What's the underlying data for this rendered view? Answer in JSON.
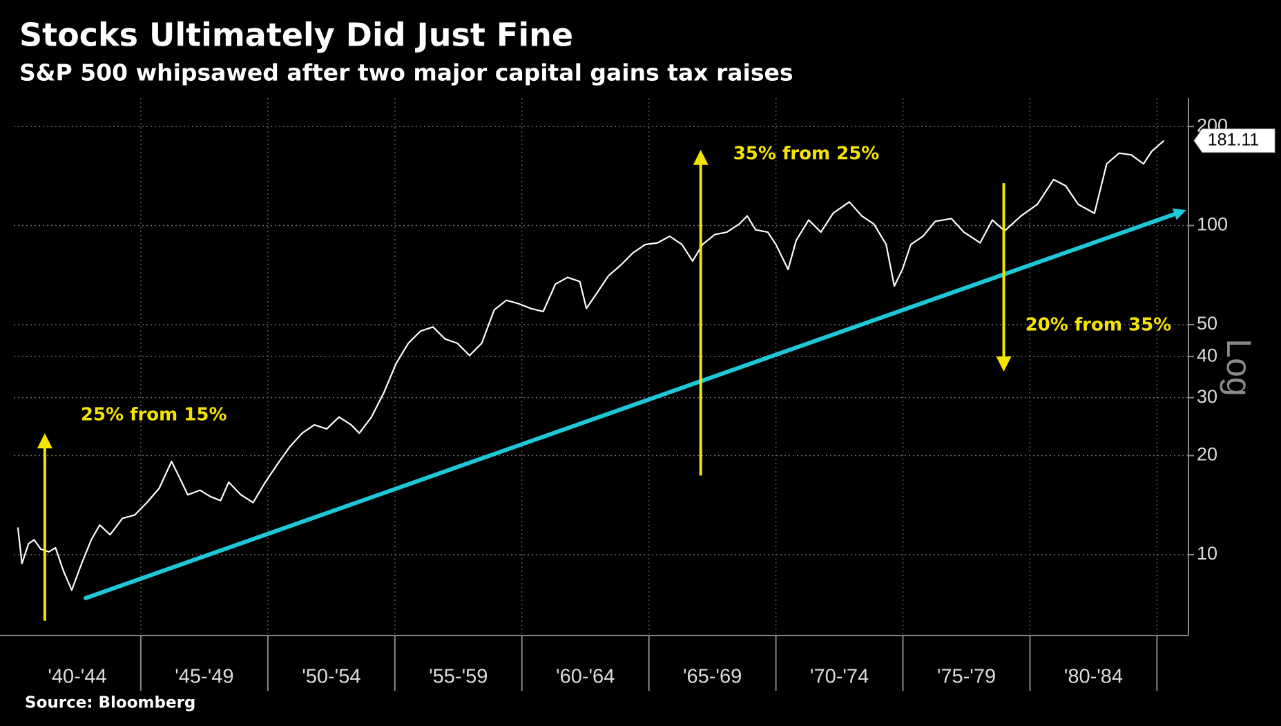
{
  "chart_data": {
    "type": "line",
    "title": "Stocks Ultimately Did Just Fine",
    "subtitle": "S&P 500 whipsawed after two major capital gains tax raises",
    "source": "Source: Bloomberg",
    "y_scale_label": "Log",
    "log_y": true,
    "grid": true,
    "categories": [
      "'40-'44",
      "'45-'49",
      "'50-'54",
      "'55-'59",
      "'60-'64",
      "'65-'69",
      "'70-'74",
      "'75-'79",
      "'80-'84"
    ],
    "xlim": [
      1940,
      1986.24
    ],
    "xticks": [
      1940,
      1945,
      1950,
      1955,
      1960,
      1965,
      1970,
      1975,
      1980,
      1985
    ],
    "ylim": [
      5.68,
      244
    ],
    "yticks": [
      10,
      20,
      30,
      40,
      50,
      100,
      200
    ],
    "x": [
      1940.16,
      1940.32,
      1940.58,
      1940.8,
      1941.06,
      1941.38,
      1941.64,
      1941.96,
      1942.28,
      1942.67,
      1943.05,
      1943.38,
      1943.79,
      1944.28,
      1944.76,
      1945.24,
      1945.72,
      1946.21,
      1946.53,
      1946.85,
      1947.33,
      1947.75,
      1948.14,
      1948.46,
      1948.94,
      1949.42,
      1949.9,
      1950.39,
      1950.87,
      1951.35,
      1951.83,
      1952.32,
      1952.8,
      1953.28,
      1953.6,
      1954.08,
      1954.57,
      1955.05,
      1955.53,
      1956.01,
      1956.5,
      1956.98,
      1957.46,
      1957.94,
      1958.42,
      1958.91,
      1959.39,
      1959.87,
      1960.35,
      1960.84,
      1961.32,
      1961.8,
      1962.28,
      1962.54,
      1962.93,
      1963.41,
      1963.89,
      1964.37,
      1964.86,
      1965.34,
      1965.82,
      1966.3,
      1966.72,
      1967.11,
      1967.59,
      1968.07,
      1968.55,
      1968.87,
      1969.2,
      1969.68,
      1970.0,
      1970.48,
      1970.8,
      1971.29,
      1971.77,
      1972.25,
      1972.89,
      1973.38,
      1973.86,
      1974.34,
      1974.66,
      1974.98,
      1975.31,
      1975.79,
      1976.27,
      1976.91,
      1977.4,
      1978.04,
      1978.52,
      1979.0,
      1979.65,
      1980.29,
      1980.93,
      1981.41,
      1981.9,
      1982.54,
      1983.02,
      1983.51,
      1983.99,
      1984.47,
      1984.79,
      1985.27
    ],
    "series": [
      {
        "name": "S&P 500",
        "color": "#ffffff",
        "values": [
          12.1,
          9.4,
          10.8,
          11.1,
          10.4,
          10.2,
          10.5,
          8.9,
          7.8,
          9.4,
          11.1,
          12.3,
          11.5,
          12.9,
          13.2,
          14.4,
          15.9,
          19.2,
          17.1,
          15.2,
          15.7,
          15.0,
          14.6,
          16.6,
          15.2,
          14.4,
          16.6,
          18.9,
          21.3,
          23.4,
          24.8,
          24.1,
          26.2,
          24.8,
          23.4,
          26.2,
          31.1,
          38.1,
          43.9,
          47.8,
          49.2,
          45.2,
          43.9,
          40.3,
          43.9,
          55.4,
          59.3,
          57.9,
          56.0,
          54.8,
          66.4,
          69.6,
          67.6,
          56.0,
          62.0,
          70.4,
          75.8,
          82.6,
          87.6,
          88.6,
          92.8,
          87.6,
          78.0,
          87.6,
          93.9,
          95.5,
          101,
          107,
          97.1,
          95.5,
          87.6,
          73.6,
          90.2,
          104,
          95.5,
          109,
          118,
          107,
          101,
          87.6,
          65.5,
          73.6,
          87.6,
          92.8,
          103,
          105,
          95.5,
          88.6,
          104,
          96.3,
          107,
          116,
          138,
          132,
          116,
          109,
          154,
          166,
          164,
          154,
          168,
          181.11
        ]
      }
    ],
    "trendline": {
      "color": "#1ec8d8",
      "x": [
        1942.83,
        1985.69
      ],
      "values": [
        7.38,
        108.3
      ]
    },
    "annotations": [
      {
        "text": "25% from 15%",
        "color": "#f5e400",
        "x": 1941.22,
        "y_from": 6.3,
        "y_to": 23.4
      },
      {
        "text": "35% from 25%",
        "color": "#f5e400",
        "x": 1967.04,
        "y_from": 17.4,
        "y_to": 170
      },
      {
        "text": "20% from 35%",
        "color": "#f5e400",
        "x": 1978.97,
        "y_from": 134.6,
        "y_to": 36.0
      }
    ]
  }
}
